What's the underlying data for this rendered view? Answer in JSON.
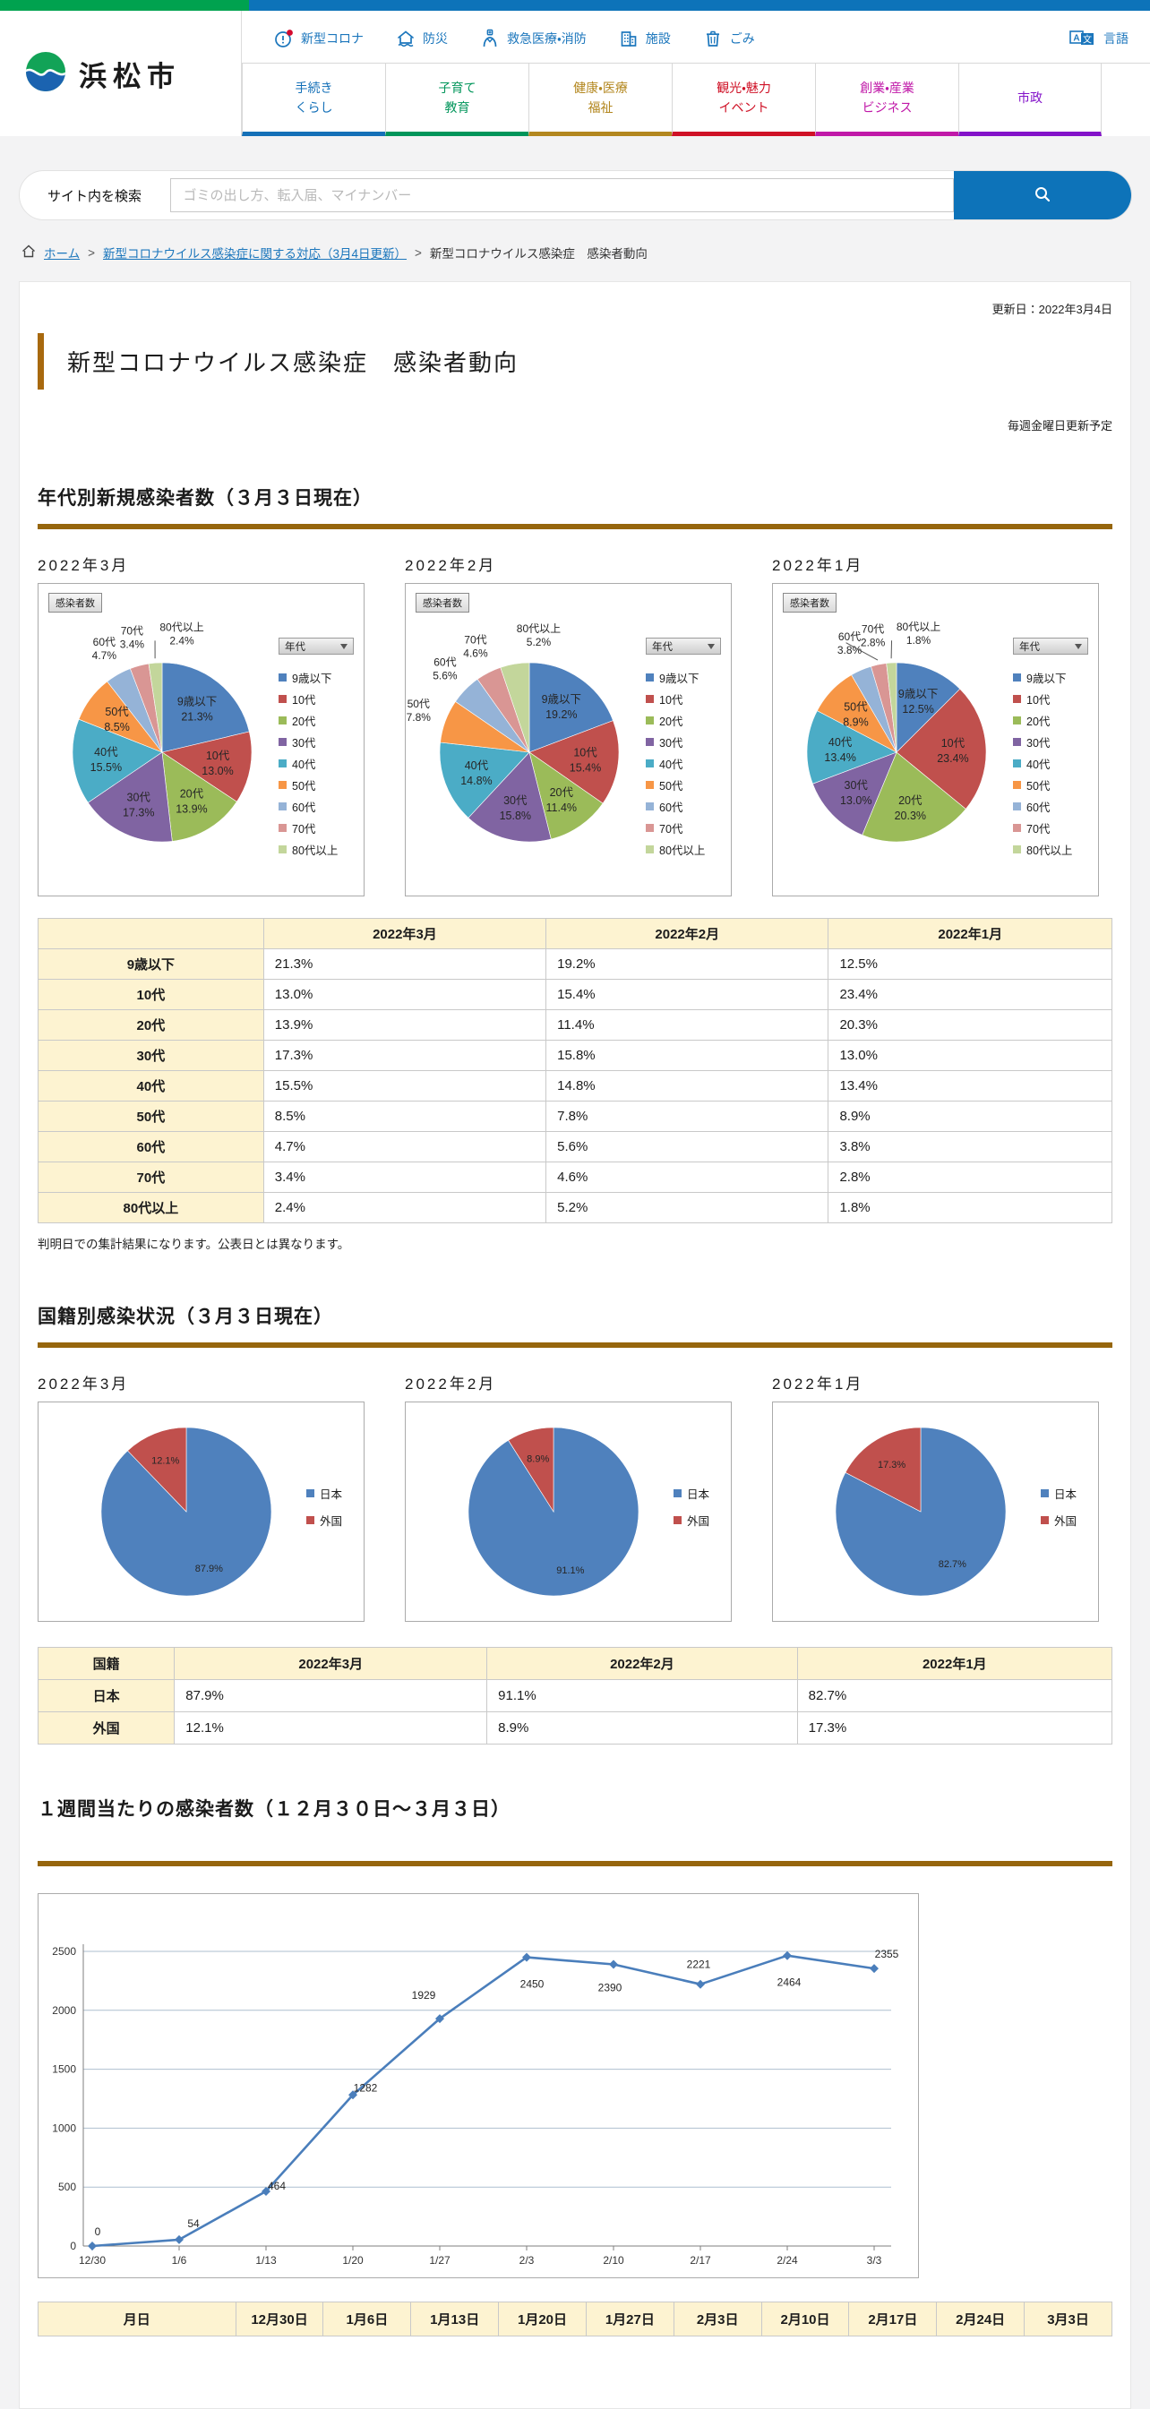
{
  "header": {
    "site_name": "浜松市",
    "utility_nav": [
      {
        "label": "新型コロナ",
        "icon": "alert-icon"
      },
      {
        "label": "防災",
        "icon": "house-icon"
      },
      {
        "label": "救急医療・消防",
        "icon": "medic-icon"
      },
      {
        "label": "施設",
        "icon": "building-icon"
      },
      {
        "label": "ごみ",
        "icon": "trash-icon"
      }
    ],
    "language": {
      "label": "言語",
      "icon": "translate-icon"
    },
    "tabs": [
      {
        "label1": "手続き",
        "label2": "くらし",
        "color": "#1470b8"
      },
      {
        "label1": "子育て",
        "label2": "教育",
        "color": "#00955a"
      },
      {
        "label1": "健康・医療",
        "label2": "福祉",
        "color": "#b3871f"
      },
      {
        "label1": "観光・魅力",
        "label2": "イベント",
        "color": "#cf1126"
      },
      {
        "label1": "創業・産業",
        "label2": "ビジネス",
        "color": "#c018a8"
      },
      {
        "label1": "市政",
        "label2": "",
        "color": "#8312c9"
      }
    ]
  },
  "search": {
    "label": "サイト内を検索",
    "placeholder": "ゴミの出し方、転入届、マイナンバー"
  },
  "breadcrumb": {
    "home": "ホーム",
    "level2": "新型コロナウイルス感染症に関する対応（3月4日更新）",
    "current": "新型コロナウイルス感染症　感染者動向"
  },
  "page": {
    "updated": "更新日：2022年3月4日",
    "title": "新型コロナウイルス感染症　感染者動向",
    "schedule_note": "毎週金曜日更新予定",
    "age_heading": "年代別新規感染者数（３月３日現在）",
    "age_note": "判明日での集計結果になります。公表日とは異なります。",
    "nationality_heading": "国籍別感染状況（３月３日現在）",
    "weekly_heading": "１週間当たりの感染者数（１２月３０日～３月３日）"
  },
  "chart_data": [
    {
      "type": "pie",
      "group": "age",
      "title": "2022年3月",
      "button": "感染者数",
      "dropdown": "年代",
      "categories": [
        "9歳以下",
        "10代",
        "20代",
        "30代",
        "40代",
        "50代",
        "60代",
        "70代",
        "80代以上"
      ],
      "values": [
        21.3,
        13.0,
        13.9,
        17.3,
        15.5,
        8.5,
        4.7,
        3.4,
        2.4
      ]
    },
    {
      "type": "pie",
      "group": "age",
      "title": "2022年2月",
      "button": "感染者数",
      "dropdown": "年代",
      "categories": [
        "9歳以下",
        "10代",
        "20代",
        "30代",
        "40代",
        "50代",
        "60代",
        "70代",
        "80代以上"
      ],
      "values": [
        19.2,
        15.4,
        11.4,
        15.8,
        14.8,
        7.8,
        5.6,
        4.6,
        5.2
      ]
    },
    {
      "type": "pie",
      "group": "age",
      "title": "2022年1月",
      "button": "感染者数",
      "dropdown": "年代",
      "categories": [
        "9歳以下",
        "10代",
        "20代",
        "30代",
        "40代",
        "50代",
        "60代",
        "70代",
        "80代以上"
      ],
      "values": [
        12.5,
        23.4,
        20.3,
        13.0,
        13.4,
        8.9,
        3.8,
        2.8,
        1.8
      ]
    },
    {
      "type": "pie",
      "group": "nationality",
      "title": "2022年3月",
      "categories": [
        "日本",
        "外国"
      ],
      "values": [
        87.9,
        12.1
      ]
    },
    {
      "type": "pie",
      "group": "nationality",
      "title": "2022年2月",
      "categories": [
        "日本",
        "外国"
      ],
      "values": [
        91.1,
        8.9
      ]
    },
    {
      "type": "pie",
      "group": "nationality",
      "title": "2022年1月",
      "categories": [
        "日本",
        "外国"
      ],
      "values": [
        82.7,
        17.3
      ]
    },
    {
      "type": "line",
      "title": "１週間当たりの感染者数（１２月３０日～３月３日）",
      "x": [
        "12/30",
        "1/6",
        "1/13",
        "1/20",
        "1/27",
        "2/3",
        "2/10",
        "2/17",
        "2/24",
        "3/3"
      ],
      "values": [
        0,
        54,
        464,
        1282,
        1929,
        2450,
        2390,
        2221,
        2464,
        2355
      ],
      "ylim": [
        0,
        2500
      ],
      "ytick": 500,
      "grid": true,
      "label_dx": [
        6,
        16,
        12,
        14,
        -18,
        6,
        -4,
        -2,
        2,
        14
      ],
      "label_dy": [
        -12,
        -14,
        -2,
        -4,
        -22,
        34,
        30,
        -18,
        34,
        -12
      ]
    }
  ],
  "age_table": {
    "headers": [
      "",
      "2022年3月",
      "2022年2月",
      "2022年1月"
    ],
    "rows": [
      [
        "9歳以下",
        "21.3%",
        "19.2%",
        "12.5%"
      ],
      [
        "10代",
        "13.0%",
        "15.4%",
        "23.4%"
      ],
      [
        "20代",
        "13.9%",
        "11.4%",
        "20.3%"
      ],
      [
        "30代",
        "17.3%",
        "15.8%",
        "13.0%"
      ],
      [
        "40代",
        "15.5%",
        "14.8%",
        "13.4%"
      ],
      [
        "50代",
        "8.5%",
        "7.8%",
        "8.9%"
      ],
      [
        "60代",
        "4.7%",
        "5.6%",
        "3.8%"
      ],
      [
        "70代",
        "3.4%",
        "4.6%",
        "2.8%"
      ],
      [
        "80代以上",
        "2.4%",
        "5.2%",
        "1.8%"
      ]
    ]
  },
  "nationality_table": {
    "headers": [
      "国籍",
      "2022年3月",
      "2022年2月",
      "2022年1月"
    ],
    "rows": [
      [
        "日本",
        "87.9%",
        "91.1%",
        "82.7%"
      ],
      [
        "外国",
        "12.1%",
        "8.9%",
        "17.3%"
      ]
    ]
  },
  "weekly_table": {
    "headers": [
      "月日",
      "12月30日",
      "1月6日",
      "1月13日",
      "1月20日",
      "1月27日",
      "2月3日",
      "2月10日",
      "2月17日",
      "2月24日",
      "3月3日"
    ]
  },
  "colors": {
    "pie_palette": [
      "#4F81BD",
      "#C0504D",
      "#9BBB59",
      "#8064A2",
      "#4BACC6",
      "#F79646",
      "#95B3D7",
      "#D99694",
      "#C3D69B"
    ],
    "nationality_palette": [
      "#4F81BD",
      "#C0504D"
    ],
    "line": "#4a7ebb",
    "accent_brown": "#96660d",
    "brand_blue": "#0d73b9",
    "brand_green": "#00a24f"
  }
}
